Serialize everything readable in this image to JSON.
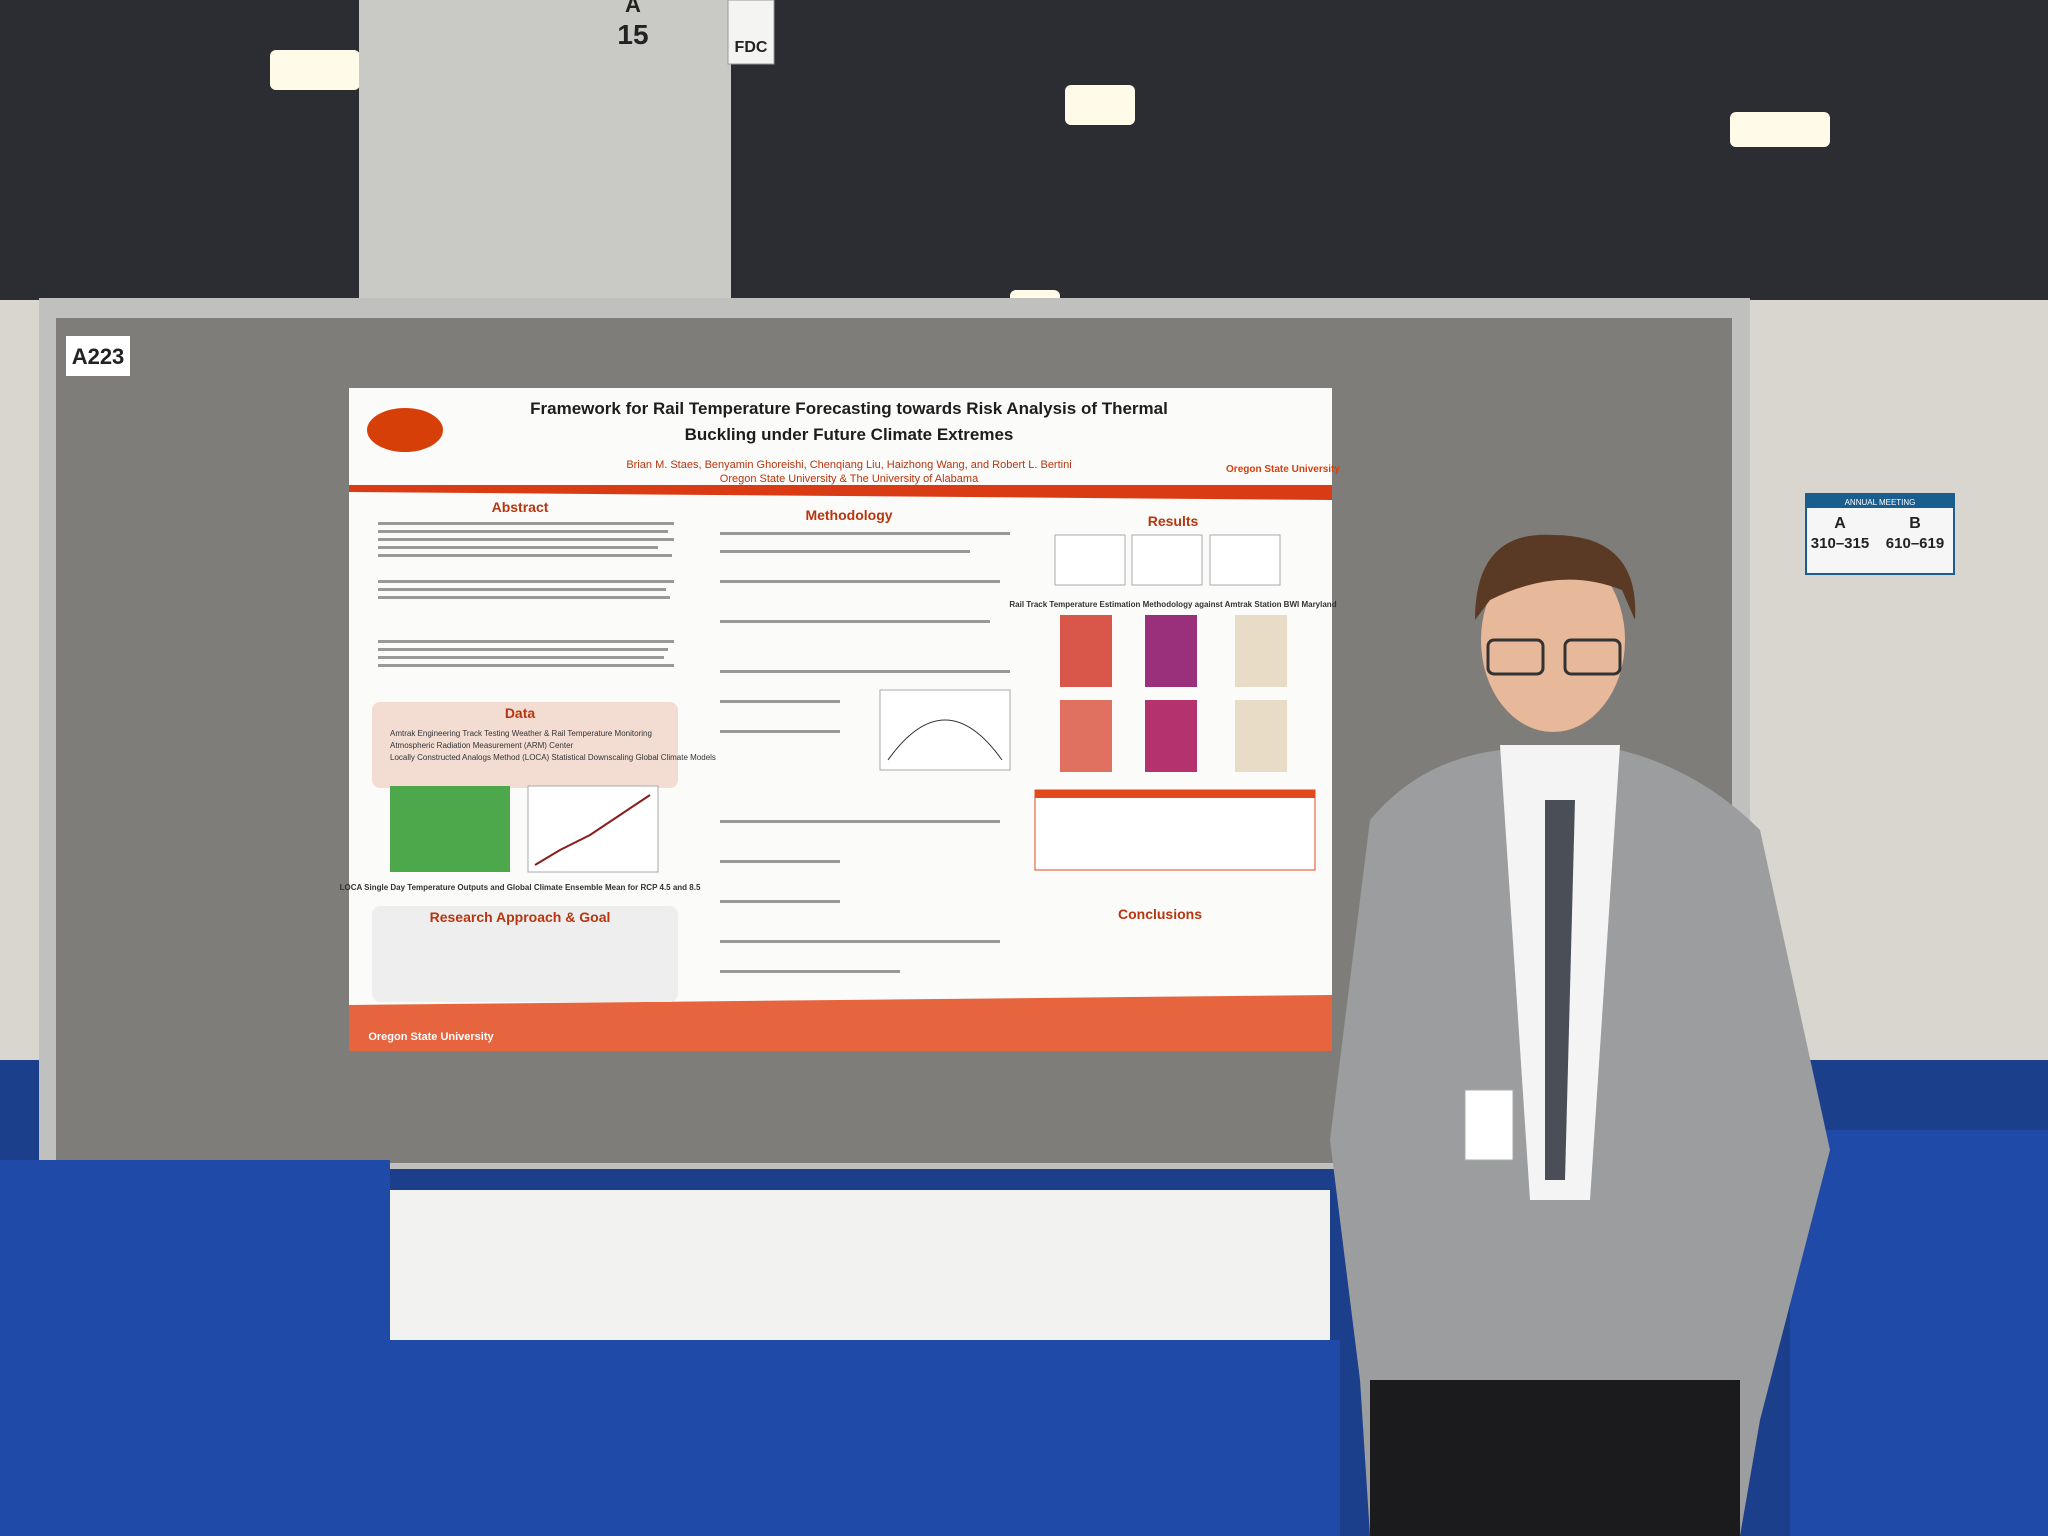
{
  "signs": {
    "pillar_aisle": "A",
    "pillar_number": "15",
    "pillar_tag": "FDC",
    "booth": "A223",
    "aisle_sign": {
      "left_letter": "A",
      "left_range": "310–315",
      "right_letter": "B",
      "right_range": "610–619",
      "header": "ANNUAL MEETING"
    }
  },
  "poster": {
    "title_line1": "Framework for Rail Temperature Forecasting towards Risk Analysis of Thermal",
    "title_line2": "Buckling under Future Climate Extremes",
    "authors": "Brian M. Staes, Benyamin Ghoreishi, Chenqiang Liu, Haizhong Wang, and Robert L. Bertini",
    "affiliation": "Oregon State University &  The University of Alabama",
    "logo_right": "Oregon State University",
    "logo_bottom": "Oregon State University",
    "sections": {
      "abstract": "Abstract",
      "data": "Data",
      "approach": "Research Approach & Goal",
      "methodology": "Methodology",
      "results": "Results",
      "conclusions": "Conclusions"
    },
    "data_bullets": [
      "Amtrak Engineering Track Testing Weather & Rail Temperature Monitoring",
      "Atmospheric Radiation Measurement (ARM) Center",
      "Locally Constructed Analogs Method (LOCA) Statistical Downscaling Global Climate Models"
    ],
    "data_caption": "LOCA Single Day Temperature Outputs and Global Climate Ensemble Mean for RCP 4.5 and 8.5",
    "results_caption": "Rail Track Temperature Estimation Methodology against Amtrak Station BWI Maryland"
  }
}
